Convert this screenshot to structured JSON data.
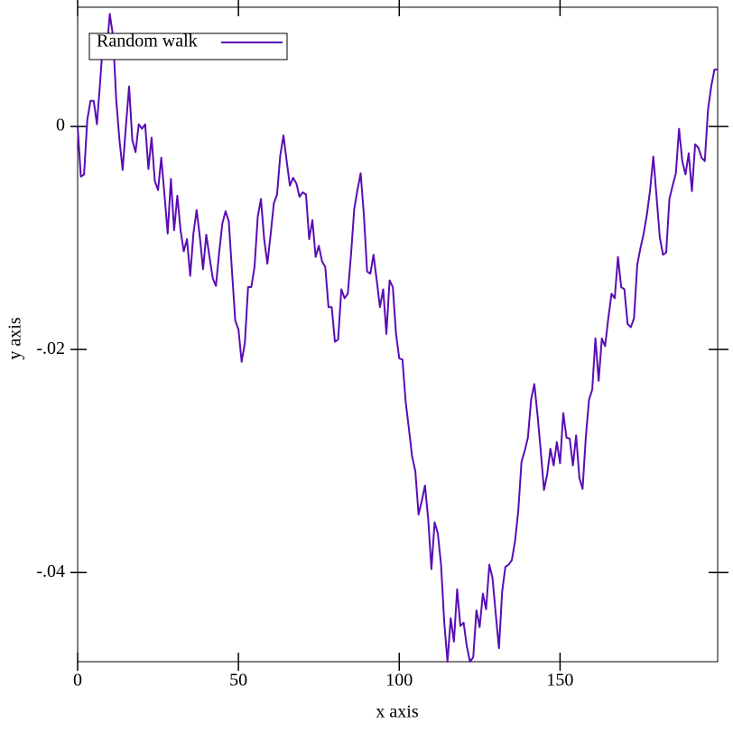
{
  "chart_data": {
    "type": "line",
    "x_label": "x axis",
    "y_label": "y axis",
    "x": [
      0,
      1,
      2,
      3,
      4,
      5,
      6,
      7,
      8,
      9,
      10,
      11,
      12,
      13,
      14,
      15,
      16,
      17,
      18,
      19,
      20,
      21,
      22,
      23,
      24,
      25,
      26,
      27,
      28,
      29,
      30,
      31,
      32,
      33,
      34,
      35,
      36,
      37,
      38,
      39,
      40,
      41,
      42,
      43,
      44,
      45,
      46,
      47,
      48,
      49,
      50,
      51,
      52,
      53,
      54,
      55,
      56,
      57,
      58,
      59,
      60,
      61,
      62,
      63,
      64,
      65,
      66,
      67,
      68,
      69,
      70,
      71,
      72,
      73,
      74,
      75,
      76,
      77,
      78,
      79,
      80,
      81,
      82,
      83,
      84,
      85,
      86,
      87,
      88,
      89,
      90,
      91,
      92,
      93,
      94,
      95,
      96,
      97,
      98,
      99,
      100,
      101,
      102,
      103,
      104,
      105,
      106,
      107,
      108,
      109,
      110,
      111,
      112,
      113,
      114,
      115,
      116,
      117,
      118,
      119,
      120,
      121,
      122,
      123,
      124,
      125,
      126,
      127,
      128,
      129,
      130,
      131,
      132,
      133,
      134,
      135,
      136,
      137,
      138,
      139,
      140,
      141,
      142,
      143,
      144,
      145,
      146,
      147,
      148,
      149,
      150,
      151,
      152,
      153,
      154,
      155,
      156,
      157,
      158,
      159,
      160,
      161,
      162,
      163,
      164,
      165,
      166,
      167,
      168,
      169,
      170,
      171,
      172,
      173,
      174,
      175,
      176,
      177,
      178,
      179,
      180,
      181,
      182,
      183,
      184,
      185,
      186,
      187,
      188,
      189,
      190,
      191,
      192,
      193,
      194,
      195,
      196,
      197,
      198,
      199
    ],
    "series": [
      {
        "name": "Random walk",
        "color": "#5a0cb4",
        "values": [
          0,
          -0.0045,
          -0.0043,
          0.0006,
          0.0023,
          0.0023,
          0.0002,
          0.004,
          0.0081,
          0.0066,
          0.0101,
          0.0081,
          0.0024,
          -0.0012,
          -0.0039,
          0,
          0.0036,
          -0.0012,
          -0.0023,
          0.0002,
          -0.0002,
          0.0002,
          -0.0038,
          -0.001,
          -0.0049,
          -0.0057,
          -0.0028,
          -0.0061,
          -0.0096,
          -0.0047,
          -0.0093,
          -0.0062,
          -0.0093,
          -0.0112,
          -0.0101,
          -0.0134,
          -0.0096,
          -0.0075,
          -0.0099,
          -0.0128,
          -0.0097,
          -0.0117,
          -0.0136,
          -0.0143,
          -0.0113,
          -0.0087,
          -0.0076,
          -0.0085,
          -0.013,
          -0.0174,
          -0.0182,
          -0.0211,
          -0.0194,
          -0.0144,
          -0.0144,
          -0.0126,
          -0.0081,
          -0.0065,
          -0.0101,
          -0.0123,
          -0.0097,
          -0.0069,
          -0.0061,
          -0.0026,
          -0.0008,
          -0.0031,
          -0.0053,
          -0.0046,
          -0.0051,
          -0.0063,
          -0.0059,
          -0.0061,
          -0.0101,
          -0.0084,
          -0.0117,
          -0.0107,
          -0.0121,
          -0.0126,
          -0.0162,
          -0.0162,
          -0.0193,
          -0.0191,
          -0.0146,
          -0.0154,
          -0.015,
          -0.0115,
          -0.0074,
          -0.0057,
          -0.0042,
          -0.0079,
          -0.013,
          -0.0132,
          -0.0115,
          -0.0138,
          -0.0162,
          -0.0146,
          -0.0186,
          -0.0138,
          -0.0144,
          -0.0186,
          -0.0208,
          -0.0209,
          -0.0247,
          -0.0271,
          -0.0296,
          -0.0309,
          -0.0348,
          -0.0336,
          -0.0322,
          -0.0352,
          -0.0397,
          -0.0355,
          -0.0365,
          -0.0393,
          -0.0445,
          -0.048,
          -0.0441,
          -0.0462,
          -0.0415,
          -0.0448,
          -0.0445,
          -0.0466,
          -0.048,
          -0.0476,
          -0.0434,
          -0.0449,
          -0.0419,
          -0.0433,
          -0.0393,
          -0.0405,
          -0.0437,
          -0.0468,
          -0.0417,
          -0.0395,
          -0.0393,
          -0.0389,
          -0.0372,
          -0.0345,
          -0.0301,
          -0.0291,
          -0.0279,
          -0.0245,
          -0.0231,
          -0.0259,
          -0.0291,
          -0.0326,
          -0.0312,
          -0.0289,
          -0.0304,
          -0.0283,
          -0.0302,
          -0.0257,
          -0.0279,
          -0.028,
          -0.0304,
          -0.0277,
          -0.0315,
          -0.0325,
          -0.0279,
          -0.0245,
          -0.0236,
          -0.019,
          -0.0228,
          -0.019,
          -0.0197,
          -0.0172,
          -0.015,
          -0.0154,
          -0.0117,
          -0.0144,
          -0.0146,
          -0.0177,
          -0.018,
          -0.0172,
          -0.0124,
          -0.0109,
          -0.0096,
          -0.0079,
          -0.0057,
          -0.0027,
          -0.0063,
          -0.0099,
          -0.0115,
          -0.0113,
          -0.0065,
          -0.0053,
          -0.0042,
          -0.0002,
          -0.0031,
          -0.0043,
          -0.0024,
          -0.0058,
          -0.0016,
          -0.0019,
          -0.0028,
          -0.0031,
          0.0015,
          0.0036,
          0.0051,
          0.0051
        ]
      }
    ],
    "xlim": [
      0,
      199
    ],
    "ylim": [
      -0.048,
      0.0107
    ],
    "xticks": [
      0,
      50,
      100,
      150
    ],
    "yticks": [
      {
        "value": 0,
        "label": "0"
      },
      {
        "value": -0.02,
        "label": "-.02"
      },
      {
        "value": -0.04,
        "label": "-.04"
      }
    ],
    "legend": "top-left"
  }
}
